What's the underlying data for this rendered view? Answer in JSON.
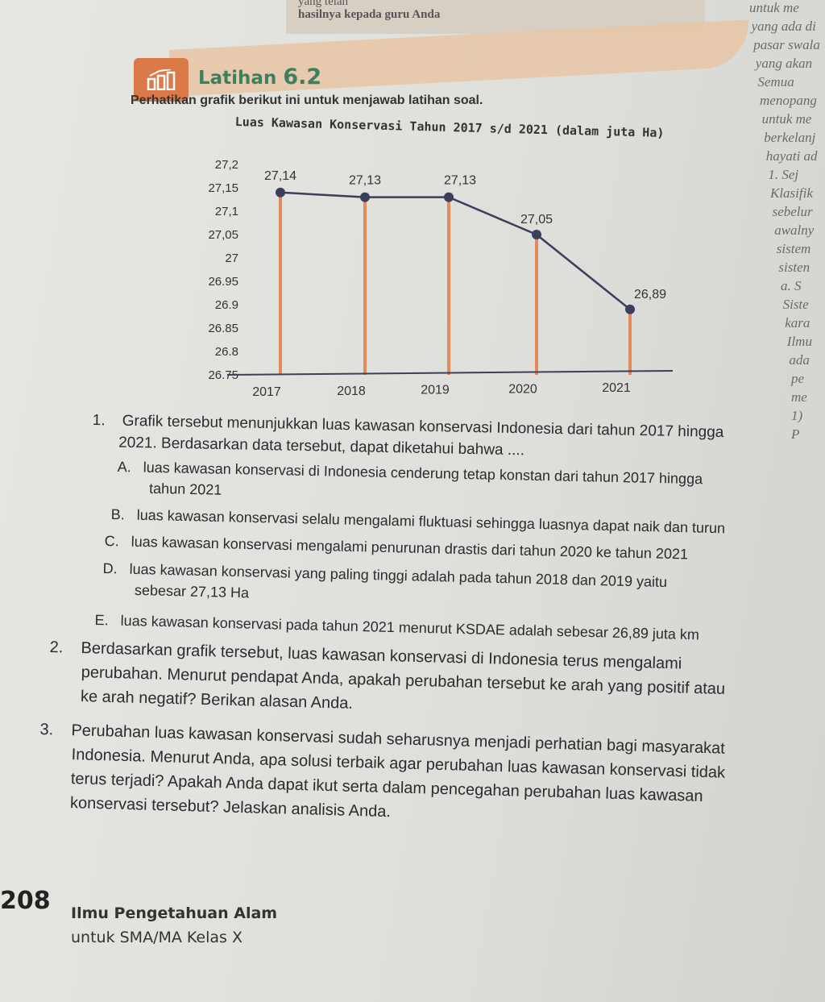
{
  "top": {
    "line1": "yang telah",
    "line2": "hasilnya kepada guru Anda"
  },
  "header": {
    "label": "Latihan",
    "number": "6.2",
    "icon": "bar-chart-icon",
    "accent": "#db7a48",
    "title_color": "#3d7f5e"
  },
  "intro": "Perhatikan grafik berikut ini untuk menjawab latihan soal.",
  "chart_data": {
    "type": "bar",
    "title": "Luas Kawasan Konservasi Tahun 2017 s/d 2021 (dalam juta Ha)",
    "categories": [
      "2017",
      "2018",
      "2019",
      "2020",
      "2021"
    ],
    "values": [
      27.14,
      27.13,
      27.13,
      27.05,
      26.89
    ],
    "data_labels": [
      "27,14",
      "27,13",
      "27,13",
      "27,05",
      "26,89"
    ],
    "ytick_labels": [
      "27,2",
      "27,15",
      "27,1",
      "27,05",
      "27",
      "26.95",
      "26.9",
      "26.85",
      "26.8",
      "26.75"
    ],
    "yticks": [
      27.2,
      27.15,
      27.1,
      27.05,
      27.0,
      26.95,
      26.9,
      26.85,
      26.8,
      26.75
    ],
    "ylim": [
      26.75,
      27.2
    ],
    "overlay": "line with markers",
    "bar_color": "#e48a5a",
    "line_color": "#3a3f5c",
    "grid": false
  },
  "questions": [
    {
      "number": "1.",
      "text_line1": "Grafik tersebut menunjukkan luas kawasan konservasi Indonesia dari tahun 2017 hingga",
      "text_line2": "2021. Berdasarkan data tersebut, dapat diketahui bahwa ....",
      "options": [
        {
          "letter": "A.",
          "line1": "luas kawasan konservasi di Indonesia cenderung tetap konstan dari tahun 2017 hingga",
          "line2": "tahun 2021"
        },
        {
          "letter": "B.",
          "line1": "luas kawasan konservasi selalu mengalami fluktuasi sehingga luasnya dapat naik dan turun",
          "line2": ""
        },
        {
          "letter": "C.",
          "line1": "luas kawasan konservasi mengalami penurunan drastis dari tahun 2020 ke tahun 2021",
          "line2": ""
        },
        {
          "letter": "D.",
          "line1": "luas kawasan konservasi yang paling tinggi adalah pada tahun 2018 dan 2019 yaitu",
          "line2": "sebesar 27,13 Ha"
        },
        {
          "letter": "E.",
          "line1": "luas kawasan konservasi pada tahun 2021 menurut KSDAE adalah sebesar 26,89 juta km",
          "line2": ""
        }
      ]
    },
    {
      "number": "2.",
      "line1": "Berdasarkan grafik tersebut, luas kawasan konservasi di Indonesia terus mengalami",
      "line2": "perubahan. Menurut pendapat Anda, apakah perubahan tersebut ke arah yang positif atau",
      "line3": "ke arah negatif? Berikan alasan Anda."
    },
    {
      "number": "3.",
      "line1": "Perubahan luas kawasan konservasi sudah seharusnya menjadi perhatian bagi masyarakat",
      "line2": "Indonesia. Menurut Anda, apa solusi terbaik agar perubahan luas kawasan konservasi tidak",
      "line3": "terus terjadi? Apakah Anda dapat ikut serta dalam pencegahan perubahan luas kawasan",
      "line4": "konservasi tersebut? Jelaskan analisis Anda."
    }
  ],
  "side_page": [
    "untuk me",
    "yang ada di",
    "pasar swala",
    "yang akan",
    "Semua",
    "menopang",
    "untuk me",
    "berkelanj",
    "hayati ad",
    "1. Sej",
    "Klasifik",
    "sebelur",
    "awalny",
    "sistem",
    "sisten",
    "a. S",
    "Siste",
    "kara",
    "Ilmu",
    "ada",
    "pe",
    "me",
    "1)",
    "P"
  ],
  "footer": {
    "page": "208",
    "book": "Ilmu Pengetahuan Alam",
    "subtitle": "untuk SMA/MA Kelas X"
  }
}
